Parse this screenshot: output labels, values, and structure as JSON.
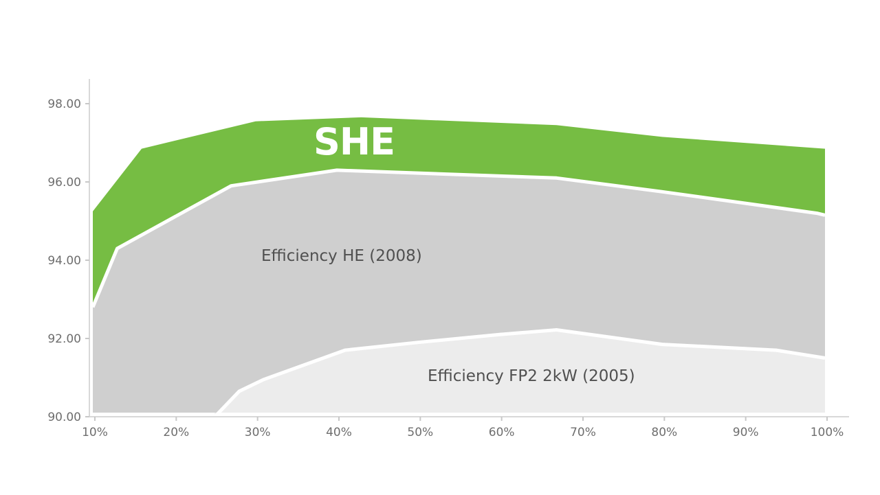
{
  "chart_data": {
    "type": "area",
    "x": [
      10,
      13,
      16,
      27,
      30,
      40,
      43,
      60,
      67,
      80,
      90,
      94,
      99,
      100
    ],
    "x_ticks": [
      "10%",
      "20%",
      "30%",
      "40%",
      "50%",
      "60%",
      "70%",
      "80%",
      "90%",
      "100%"
    ],
    "x_tick_values": [
      10,
      20,
      30,
      40,
      50,
      60,
      70,
      80,
      90,
      100
    ],
    "y_ticks": [
      "90.00",
      "92.00",
      "94.00",
      "96.00",
      "98.00"
    ],
    "y_tick_values": [
      90,
      92,
      94,
      96,
      98
    ],
    "xlim": [
      10,
      100
    ],
    "ylim": [
      90,
      98.6
    ],
    "grid": false,
    "series": [
      {
        "name": "Efficiency FP2 2kW (2005)",
        "color": "#ececec",
        "points": [
          [
            25,
            90.0
          ],
          [
            28,
            90.65
          ],
          [
            31,
            90.95
          ],
          [
            41,
            91.7
          ],
          [
            50,
            91.9
          ],
          [
            60,
            92.1
          ],
          [
            67,
            92.22
          ],
          [
            80,
            91.85
          ],
          [
            94,
            91.7
          ],
          [
            100,
            91.5
          ]
        ]
      },
      {
        "name": "Efficiency HE (2008)",
        "color": "#cfcfcf",
        "points": [
          [
            10,
            92.8
          ],
          [
            13,
            94.3
          ],
          [
            27,
            95.9
          ],
          [
            40,
            96.3
          ],
          [
            67,
            96.1
          ],
          [
            80,
            95.75
          ],
          [
            99,
            95.2
          ],
          [
            100,
            95.15
          ]
        ]
      },
      {
        "name": "SHE",
        "color": "#76bd43",
        "points": [
          [
            10,
            95.25
          ],
          [
            16,
            96.85
          ],
          [
            30,
            97.55
          ],
          [
            43,
            97.65
          ],
          [
            67,
            97.45
          ],
          [
            80,
            97.15
          ],
          [
            100,
            96.85
          ]
        ]
      }
    ]
  },
  "labels": {
    "she_logo": "SHE",
    "he": "Efficiency HE (2008)",
    "fp2": "Efficiency FP2 2kW (2005)"
  }
}
